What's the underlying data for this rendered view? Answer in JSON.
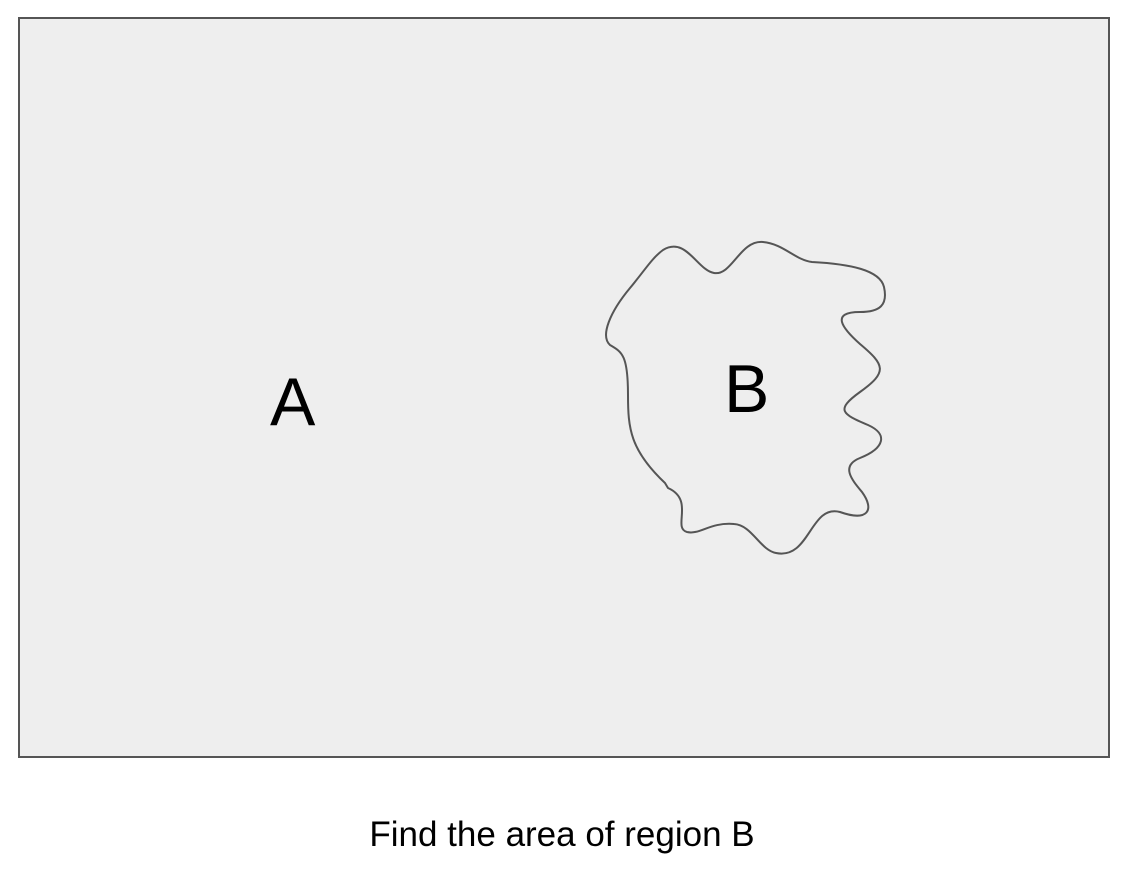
{
  "diagram": {
    "region_a_label": "A",
    "region_b_label": "B",
    "caption": "Find the area of region B",
    "colors": {
      "region_fill": "#eeeeee",
      "outline": "#555555",
      "text": "#000000",
      "background": "#ffffff"
    }
  }
}
